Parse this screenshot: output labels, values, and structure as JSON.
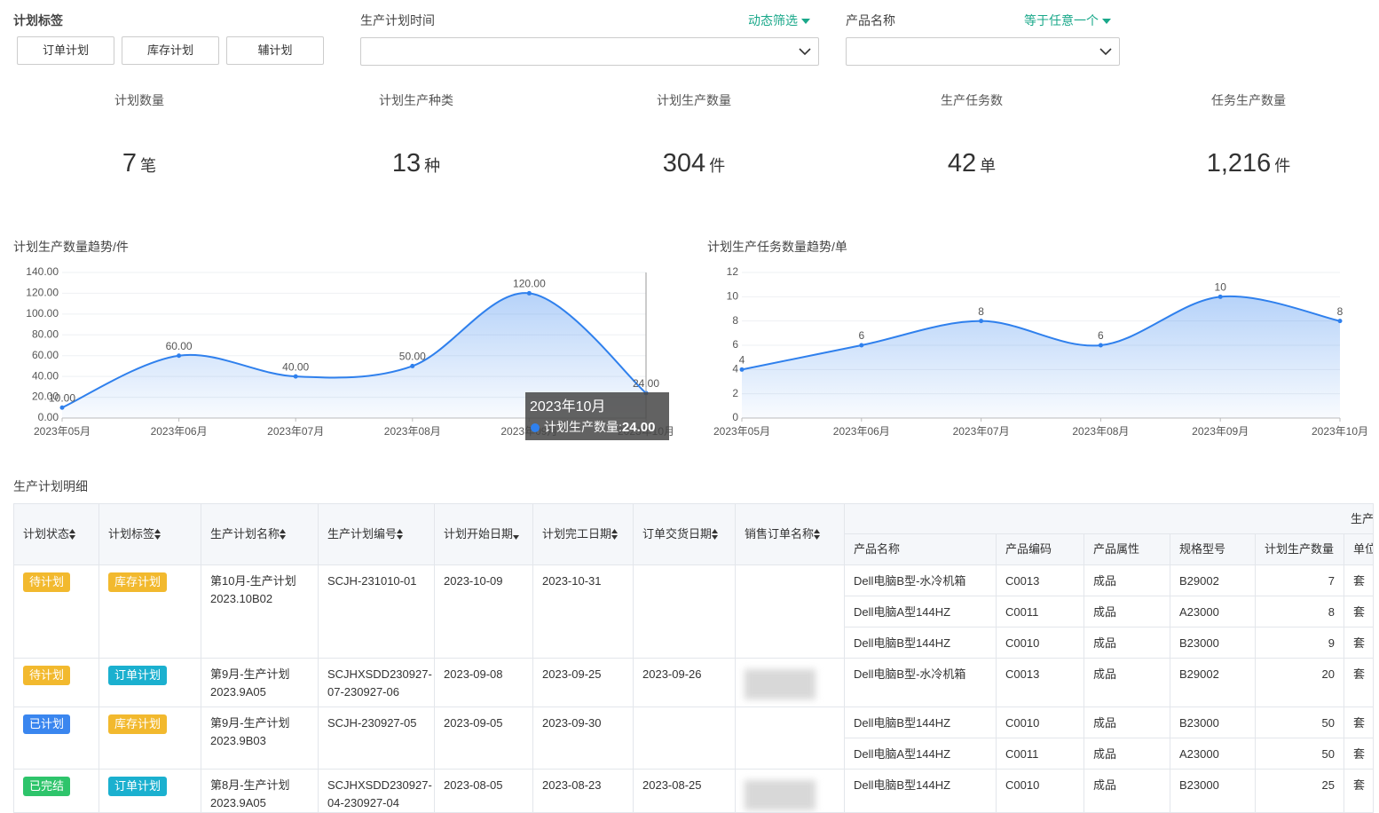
{
  "filters": {
    "plan_tag": {
      "label": "计划标签",
      "options": [
        "订单计划",
        "库存计划",
        "辅计划"
      ]
    },
    "plan_time": {
      "label": "生产计划时间",
      "mode": "动态筛选"
    },
    "product_name": {
      "label": "产品名称",
      "mode": "等于任意一个"
    }
  },
  "kpis": [
    {
      "label": "计划数量",
      "value": "7",
      "unit": "笔"
    },
    {
      "label": "计划生产种类",
      "value": "13",
      "unit": "种"
    },
    {
      "label": "计划生产数量",
      "value": "304",
      "unit": "件"
    },
    {
      "label": "生产任务数",
      "value": "42",
      "unit": "单"
    },
    {
      "label": "任务生产数量",
      "value": "1,216",
      "unit": "件"
    }
  ],
  "chart_data": [
    {
      "type": "line",
      "title": "计划生产数量趋势/件",
      "categories": [
        "2023年05月",
        "2023年06月",
        "2023年07月",
        "2023年08月",
        "2023年09月",
        "2023年10月"
      ],
      "series": [
        {
          "name": "计划生产数量",
          "color": "#2f80ed",
          "values": [
            10,
            60,
            40,
            50,
            120,
            24
          ],
          "value_labels": [
            "10.00",
            "60.00",
            "40.00",
            "50.00",
            "120.00",
            "24.00"
          ]
        }
      ],
      "ylim": [
        0,
        140
      ],
      "yticks": [
        {
          "value": 0,
          "label": "0.00"
        },
        {
          "value": 20,
          "label": "20.00"
        },
        {
          "value": 40,
          "label": "40.00"
        },
        {
          "value": 60,
          "label": "60.00"
        },
        {
          "value": 80,
          "label": "80.00"
        },
        {
          "value": 100,
          "label": "100.00"
        },
        {
          "value": 120,
          "label": "120.00"
        },
        {
          "value": 140,
          "label": "140.00"
        }
      ],
      "grid": true,
      "smooth": true,
      "tooltip": {
        "title": "2023年10月",
        "separator": ":"
      }
    },
    {
      "type": "line",
      "title": "计划生产任务数量趋势/单",
      "categories": [
        "2023年05月",
        "2023年06月",
        "2023年07月",
        "2023年08月",
        "2023年09月",
        "2023年10月"
      ],
      "color": "#2f80ed",
      "values": [
        4,
        6,
        8,
        6,
        10,
        8
      ],
      "ylim": [
        0,
        12
      ],
      "yticks": [
        0,
        2,
        4,
        6,
        8,
        10,
        12
      ],
      "grid": true,
      "smooth": true
    }
  ],
  "table": {
    "title": "生产计划明细",
    "columns": [
      "计划状态",
      "计划标签",
      "生产计划名称",
      "生产计划编号",
      "计划开始日期",
      "计划完工日期",
      "订单交货日期",
      "销售订单名称"
    ],
    "group_header": "生产",
    "sub_columns": [
      "产品名称",
      "产品编码",
      "产品属性",
      "规格型号",
      "计划生产数量",
      "单位"
    ],
    "rows": [
      {
        "status": {
          "text": "待计划",
          "color": "#f2b92e"
        },
        "tag": {
          "text": "库存计划",
          "color": "#f2b92e"
        },
        "name": [
          "第10月-生产计划",
          "2023.10B02"
        ],
        "code": [
          "SCJH-231010-01"
        ],
        "start": "2023-10-09",
        "end": "2023-10-31",
        "delivery": null,
        "sales_order_blurred": false,
        "items": [
          [
            "Dell电脑B型-水冷机箱",
            "C0013",
            "成品",
            "B29002",
            7,
            "套"
          ],
          [
            "Dell电脑A型144HZ",
            "C0011",
            "成品",
            "A23000",
            8,
            "套"
          ],
          [
            "Dell电脑B型144HZ",
            "C0010",
            "成品",
            "B23000",
            9,
            "套"
          ]
        ]
      },
      {
        "status": {
          "text": "待计划",
          "color": "#f2b92e"
        },
        "tag": {
          "text": "订单计划",
          "color": "#1bb0cf"
        },
        "name": [
          "第9月-生产计划",
          "2023.9A05"
        ],
        "code": [
          "SCJHXSDD230927-",
          "07-230927-06"
        ],
        "start": "2023-09-08",
        "end": "2023-09-25",
        "delivery": "2023-09-26",
        "sales_order_blurred": true,
        "items": [
          [
            "Dell电脑B型-水冷机箱",
            "C0013",
            "成品",
            "B29002",
            20,
            "套"
          ]
        ]
      },
      {
        "status": {
          "text": "已计划",
          "color": "#3a86ef"
        },
        "tag": {
          "text": "库存计划",
          "color": "#f2b92e"
        },
        "name": [
          "第9月-生产计划",
          "2023.9B03"
        ],
        "code": [
          "SCJH-230927-05"
        ],
        "start": "2023-09-05",
        "end": "2023-09-30",
        "delivery": null,
        "sales_order_blurred": false,
        "items": [
          [
            "Dell电脑B型144HZ",
            "C0010",
            "成品",
            "B23000",
            50,
            "套"
          ],
          [
            "Dell电脑A型144HZ",
            "C0011",
            "成品",
            "A23000",
            50,
            "套"
          ]
        ]
      },
      {
        "status": {
          "text": "已完结",
          "color": "#2ec46b"
        },
        "tag": {
          "text": "订单计划",
          "color": "#1bb0cf"
        },
        "name": [
          "第8月-生产计划",
          "2023.9A05"
        ],
        "code": [
          "SCJHXSDD230927-",
          "04-230927-04"
        ],
        "start": "2023-08-05",
        "end": "2023-08-23",
        "delivery": "2023-08-25",
        "sales_order_blurred": true,
        "items": [
          [
            "Dell电脑B型144HZ",
            "C0010",
            "成品",
            "B23000",
            25,
            "套"
          ]
        ]
      }
    ]
  }
}
